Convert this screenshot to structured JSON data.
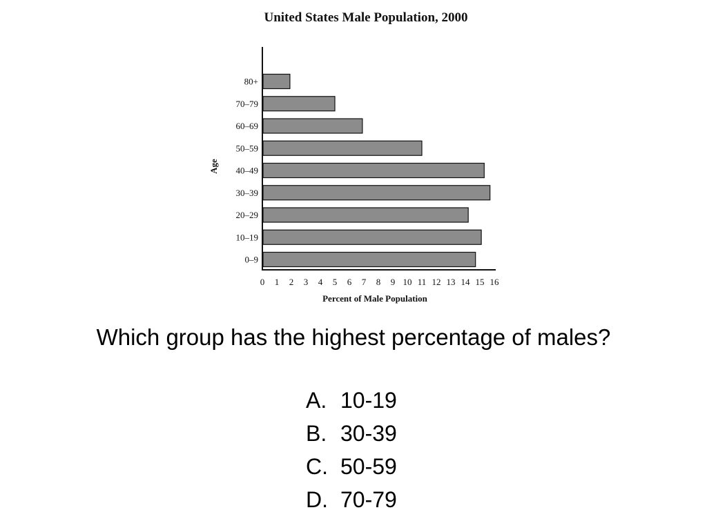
{
  "chart_data": {
    "type": "bar",
    "orientation": "horizontal",
    "title": "United States Male Population, 2000",
    "xlabel": "Percent of Male Population",
    "ylabel": "Age",
    "categories": [
      "0–9",
      "10–19",
      "20–29",
      "30–39",
      "40–49",
      "50–59",
      "60–69",
      "70–79",
      "80+"
    ],
    "values": [
      14.7,
      15.1,
      14.2,
      15.7,
      15.3,
      11.0,
      6.9,
      5.0,
      1.9
    ],
    "xlim": [
      0,
      16
    ],
    "xticks": [
      "0",
      "1",
      "2",
      "3",
      "4",
      "5",
      "6",
      "7",
      "8",
      "9",
      "10",
      "11",
      "12",
      "13",
      "14",
      "15",
      "16"
    ],
    "bar_color": "#8c8c8c",
    "grid": false,
    "legend": "none"
  },
  "question": {
    "text": "Which group has the highest percentage of males?",
    "options": [
      {
        "letter": "A.",
        "text": "10-19"
      },
      {
        "letter": "B.",
        "text": "30-39"
      },
      {
        "letter": "C.",
        "text": "50-59"
      },
      {
        "letter": "D.",
        "text": "70-79"
      }
    ]
  }
}
